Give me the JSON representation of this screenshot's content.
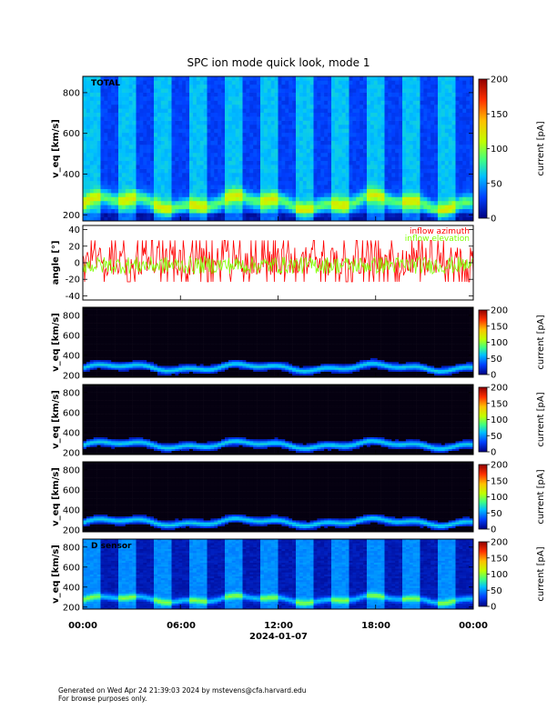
{
  "title": "SPC ion mode quick look, mode 1",
  "footer": {
    "line1": "Generated on Wed Apr 24 21:39:03 2024 by mstevens@cfa.harvard.edu",
    "line2": "For browse purposes only."
  },
  "chart_data": [
    {
      "type": "heatmap",
      "panel": "TOTAL spectrogram",
      "label": "TOTAL",
      "ylabel": "v_eq [km/s]",
      "ylim": [
        170,
        880
      ],
      "yticks": [
        "200",
        "400",
        "600",
        "800"
      ],
      "yticks_values": [
        200,
        400,
        600,
        800
      ],
      "colorbar": {
        "label": "current [pA]",
        "range": [
          0,
          200
        ],
        "ticks": [
          "0",
          "50",
          "100",
          "150",
          "200"
        ],
        "tick_values": [
          0,
          50,
          100,
          150,
          200
        ]
      },
      "core_speed_km_s": 260
    },
    {
      "type": "line",
      "panel": "angles",
      "ylabel": "angle [°]",
      "ylim": [
        -45,
        45
      ],
      "yticks": [
        "-40",
        "-20",
        "0",
        "20",
        "40"
      ],
      "yticks_values": [
        -40,
        -20,
        0,
        20,
        40
      ],
      "series": [
        {
          "name": "inflow azimuth",
          "color": "#ff0000",
          "mean_deg": 2,
          "spread_deg": 25
        },
        {
          "name": "inflow elevation",
          "color": "#80ff00",
          "mean_deg": -3,
          "spread_deg": 15
        }
      ]
    },
    {
      "type": "heatmap",
      "panel": "sensor spectrogram 1",
      "ylabel": "v_eq [km/s]",
      "ylim": [
        180,
        880
      ],
      "yticks": [
        "200",
        "400",
        "600",
        "800"
      ],
      "yticks_values": [
        200,
        400,
        600,
        800
      ],
      "colorbar": {
        "label": "current [pA]",
        "range": [
          0,
          200
        ],
        "ticks": [
          "0",
          "50",
          "100",
          "150",
          "200"
        ],
        "tick_values": [
          0,
          50,
          100,
          150,
          200
        ]
      },
      "core_speed_km_s": 280
    },
    {
      "type": "heatmap",
      "panel": "sensor spectrogram 2",
      "ylabel": "v_eq [km/s]",
      "ylim": [
        180,
        880
      ],
      "yticks": [
        "200",
        "400",
        "600",
        "800"
      ],
      "yticks_values": [
        200,
        400,
        600,
        800
      ],
      "colorbar": {
        "label": "current [pA]",
        "range": [
          0,
          200
        ],
        "ticks": [
          "0",
          "50",
          "100",
          "150",
          "200"
        ],
        "tick_values": [
          0,
          50,
          100,
          150,
          200
        ]
      },
      "core_speed_km_s": 280
    },
    {
      "type": "heatmap",
      "panel": "sensor spectrogram 3",
      "ylabel": "v_eq [km/s]",
      "ylim": [
        180,
        880
      ],
      "yticks": [
        "200",
        "400",
        "600",
        "800"
      ],
      "yticks_values": [
        200,
        400,
        600,
        800
      ],
      "colorbar": {
        "label": "current [pA]",
        "range": [
          0,
          200
        ],
        "ticks": [
          "0",
          "50",
          "100",
          "150",
          "200"
        ],
        "tick_values": [
          0,
          50,
          100,
          150,
          200
        ]
      },
      "core_speed_km_s": 280
    },
    {
      "type": "heatmap",
      "panel": "D sensor spectrogram",
      "label": "D sensor",
      "ylabel": "v_eq [km/s]",
      "ylim": [
        180,
        880
      ],
      "yticks": [
        "200",
        "400",
        "600",
        "800"
      ],
      "yticks_values": [
        200,
        400,
        600,
        800
      ],
      "colorbar": {
        "label": "current [pA]",
        "range": [
          0,
          200
        ],
        "ticks": [
          "0",
          "50",
          "100",
          "150",
          "200"
        ],
        "tick_values": [
          0,
          50,
          100,
          150,
          200
        ]
      },
      "core_speed_km_s": 280
    }
  ],
  "xaxis": {
    "ticks": [
      "00:00",
      "06:00",
      "12:00",
      "18:00",
      "00:00"
    ],
    "tick_hours": [
      0,
      6,
      12,
      18,
      24
    ],
    "date": "2024-01-07"
  }
}
